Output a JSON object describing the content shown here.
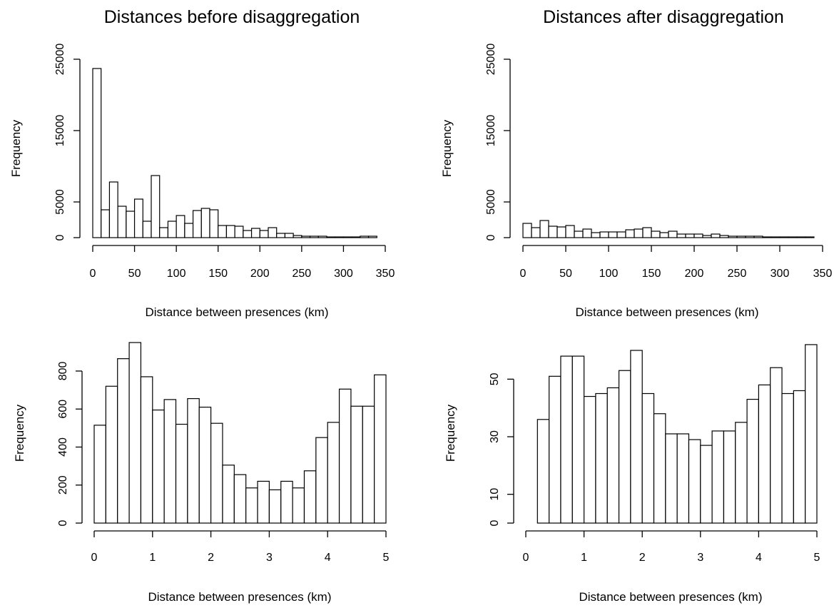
{
  "chart_data": [
    {
      "type": "bar",
      "title": "Distances before disaggregation",
      "xlabel": "Distance between presences (km)",
      "ylabel": "Frequency",
      "xlim": [
        0,
        350
      ],
      "ylim": [
        0,
        25000
      ],
      "xticks": [
        0,
        50,
        100,
        150,
        200,
        250,
        300,
        350
      ],
      "yticks": [
        0,
        5000,
        15000,
        25000
      ],
      "bin_width": 10,
      "bin_start": 0,
      "values": [
        23700,
        3900,
        7800,
        4400,
        3700,
        5400,
        2300,
        8700,
        1400,
        2300,
        3100,
        2000,
        3800,
        4100,
        3900,
        1700,
        1700,
        1600,
        1000,
        1300,
        1000,
        1400,
        600,
        600,
        300,
        200,
        200,
        200,
        100,
        100,
        100,
        100,
        200,
        200
      ],
      "grid": false
    },
    {
      "type": "bar",
      "title": "Distances after disaggregation",
      "xlabel": "Distance between presences (km)",
      "ylabel": "Frequency",
      "xlim": [
        0,
        350
      ],
      "ylim": [
        0,
        25000
      ],
      "xticks": [
        0,
        50,
        100,
        150,
        200,
        250,
        300,
        350
      ],
      "yticks": [
        0,
        5000,
        15000,
        25000
      ],
      "bin_width": 10,
      "bin_start": 0,
      "values": [
        2000,
        1400,
        2400,
        1600,
        1500,
        1700,
        900,
        1200,
        700,
        800,
        800,
        800,
        1100,
        1200,
        1400,
        900,
        700,
        900,
        500,
        500,
        500,
        300,
        500,
        300,
        200,
        200,
        200,
        200,
        100,
        100,
        100,
        100,
        100,
        100
      ],
      "grid": false
    },
    {
      "type": "bar",
      "title": "",
      "xlabel": "Distance between presences (km)",
      "ylabel": "Frequency",
      "xlim": [
        0,
        5
      ],
      "ylim": [
        0,
        950
      ],
      "xticks": [
        0,
        1,
        2,
        3,
        4,
        5
      ],
      "yticks": [
        0,
        200,
        400,
        600,
        800
      ],
      "bin_width": 0.2,
      "bin_start": 0,
      "values": [
        515,
        720,
        865,
        950,
        770,
        595,
        650,
        520,
        655,
        610,
        525,
        305,
        255,
        185,
        220,
        175,
        220,
        185,
        275,
        450,
        530,
        705,
        615,
        615,
        780
      ],
      "grid": false
    },
    {
      "type": "bar",
      "title": "",
      "xlabel": "Distance between presences (km)",
      "ylabel": "Frequency",
      "xlim": [
        0,
        5
      ],
      "ylim": [
        0,
        60
      ],
      "xticks": [
        0,
        1,
        2,
        3,
        4,
        5
      ],
      "yticks": [
        0,
        10,
        30,
        50
      ],
      "bin_width": 0.2,
      "bin_start": 0.2,
      "values": [
        36,
        51,
        58,
        58,
        44,
        45,
        47,
        53,
        60,
        45,
        38,
        31,
        31,
        29,
        27,
        32,
        32,
        35,
        43,
        48,
        54,
        45,
        46,
        62
      ],
      "grid": false
    }
  ]
}
